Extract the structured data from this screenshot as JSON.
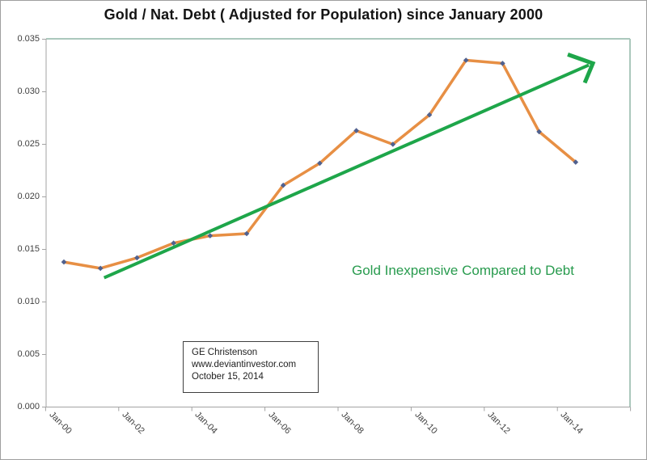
{
  "title": "Gold / Nat. Debt  ( Adjusted for Population) since January 2000",
  "annotation": "Gold Inexpensive Compared to Debt",
  "info_box": {
    "lines": [
      "GE Christenson",
      "www.deviantinvestor.com",
      "October 15, 2014"
    ]
  },
  "colors": {
    "series": "#e78f44",
    "marker": "#50618f",
    "trend": "#1ea64a",
    "annotation": "#289b4e",
    "frame": "#abc8bc",
    "axis": "#a3a3a3",
    "tick_text": "#3f3f3f",
    "title_text": "#141414"
  },
  "chart_data": {
    "type": "line",
    "title": "Gold / Nat. Debt  ( Adjusted for Population) since January 2000",
    "xlabel": "",
    "ylabel": "",
    "ylim": [
      0.0,
      0.035
    ],
    "y_tick_step": 0.005,
    "grid": false,
    "legend": "none",
    "categories": [
      "Jan-00",
      "Jan-01",
      "Jan-02",
      "Jan-03",
      "Jan-04",
      "Jan-05",
      "Jan-06",
      "Jan-07",
      "Jan-08",
      "Jan-09",
      "Jan-10",
      "Jan-11",
      "Jan-12",
      "Jan-13",
      "Jan-14"
    ],
    "series": [
      {
        "name": "Gold / National Debt (adjusted for population)",
        "values": [
          0.0138,
          0.0132,
          0.0142,
          0.0156,
          0.0163,
          0.0165,
          0.0211,
          0.0232,
          0.0263,
          0.025,
          0.0278,
          0.033,
          0.0327,
          0.0262,
          0.0233
        ]
      }
    ],
    "y_tick_labels": [
      "0.000",
      "0.005",
      "0.010",
      "0.015",
      "0.020",
      "0.025",
      "0.030",
      "0.035"
    ],
    "x_tick_labels": [
      "Jan-00",
      "Jan-02",
      "Jan-04",
      "Jan-06",
      "Jan-08",
      "Jan-10",
      "Jan-12",
      "Jan-14"
    ],
    "trend_arrow": {
      "description": "green straight trend line with open arrowhead pointing up-right",
      "from": {
        "index": 1.1,
        "value": 0.0123
      },
      "to": {
        "index": 14.47,
        "value": 0.0327
      }
    }
  }
}
